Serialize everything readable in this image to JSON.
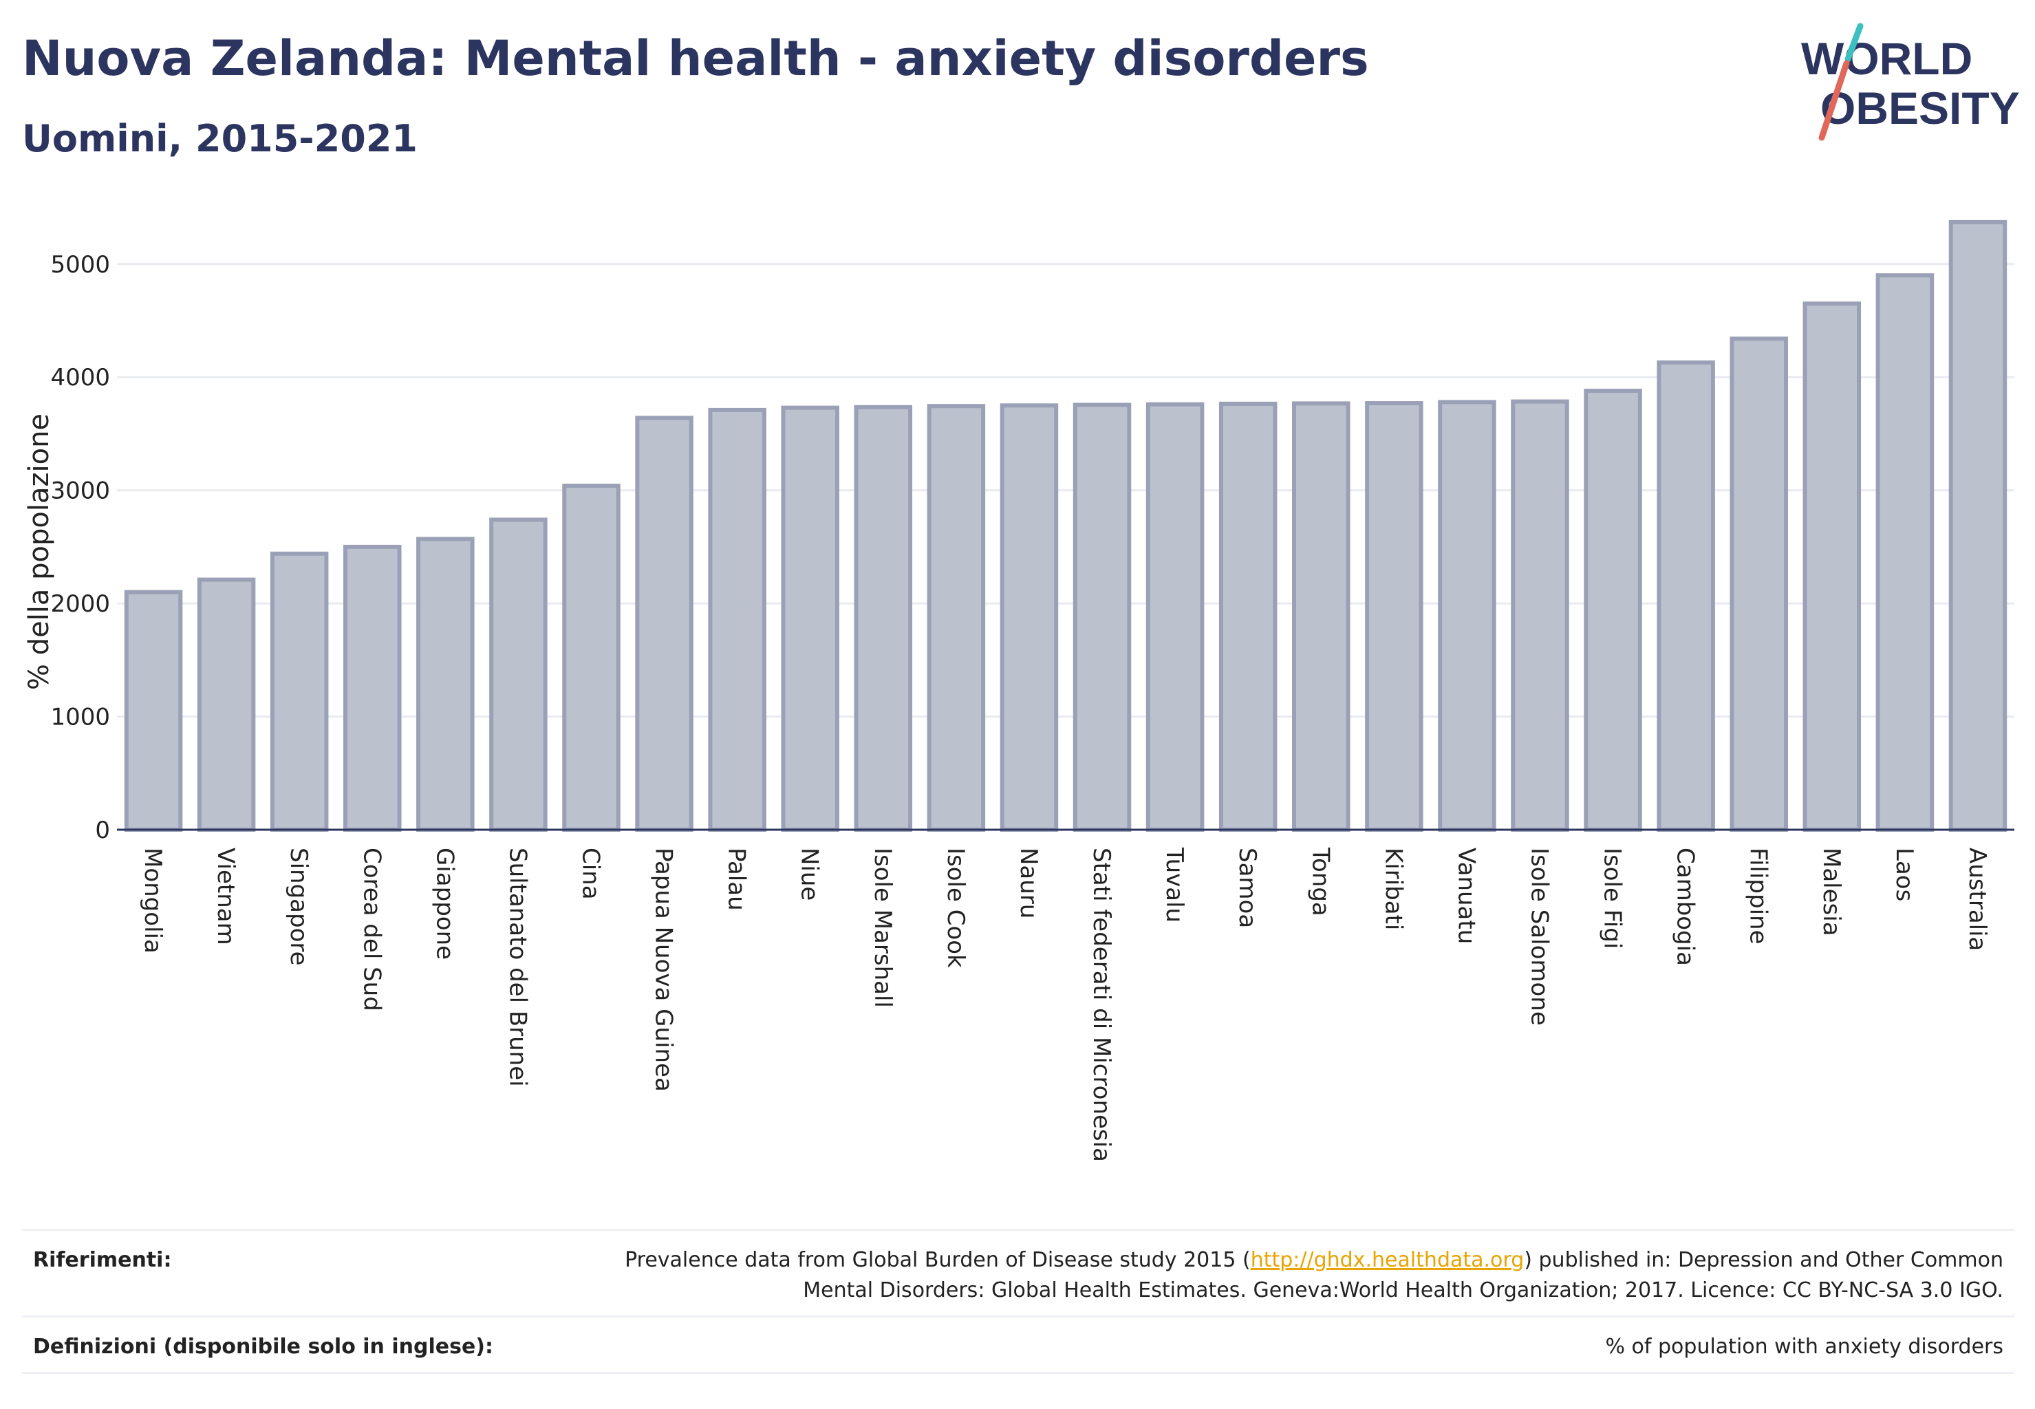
{
  "header": {
    "title": "Nuova Zelanda: Mental health - anxiety disorders",
    "subtitle": "Uomini, 2015-2021"
  },
  "logo": {
    "line1": "WORLD",
    "line2": "OBESITY"
  },
  "colors": {
    "title": "#2b3560",
    "bar_fill": "#bcc1ce",
    "bar_stroke": "#9aa1b7",
    "grid": "#e9ebf1",
    "axis": "#2b3560",
    "link": "#e8a400",
    "logo_accent_teal": "#3fbfbf",
    "logo_accent_red": "#e0685a"
  },
  "chart_data": {
    "type": "bar",
    "title": "Nuova Zelanda: Mental health - anxiety disorders",
    "subtitle": "Uomini, 2015-2021",
    "xlabel": "",
    "ylabel": "% della popolazione",
    "ylim": [
      0,
      5400
    ],
    "yticks": [
      0,
      1000,
      2000,
      3000,
      4000,
      5000
    ],
    "grid": true,
    "categories": [
      "Mongolia",
      "Vietnam",
      "Singapore",
      "Corea del Sud",
      "Giappone",
      "Sultanato del Brunei",
      "Cina",
      "Papua Nuova Guinea",
      "Palau",
      "Niue",
      "Isole Marshall",
      "Isole Cook",
      "Nauru",
      "Stati federati di Micronesia",
      "Tuvalu",
      "Samoa",
      "Tonga",
      "Kiribati",
      "Vanuatu",
      "Isole Salomone",
      "Isole Figi",
      "Cambogia",
      "Filippine",
      "Malesia",
      "Laos",
      "Australia"
    ],
    "values": [
      2100,
      2210,
      2440,
      2500,
      2570,
      2740,
      3040,
      3640,
      3710,
      3730,
      3735,
      3745,
      3750,
      3755,
      3760,
      3765,
      3768,
      3770,
      3780,
      3785,
      3880,
      4130,
      4340,
      4650,
      4900,
      5370
    ]
  },
  "footer": {
    "references_label": "Riferimenti:",
    "references_text_before": "Prevalence data from Global Burden of Disease study 2015 (",
    "references_link": "http://ghdx.healthdata.org",
    "references_text_after": ") published in: Depression and Other Common",
    "references_text_line2": "Mental Disorders: Global Health Estimates. Geneva:World Health Organization; 2017. Licence: CC BY-NC-SA 3.0 IGO.",
    "definitions_label": "Definizioni (disponibile solo in inglese):",
    "definitions_text": "% of population with anxiety disorders"
  }
}
